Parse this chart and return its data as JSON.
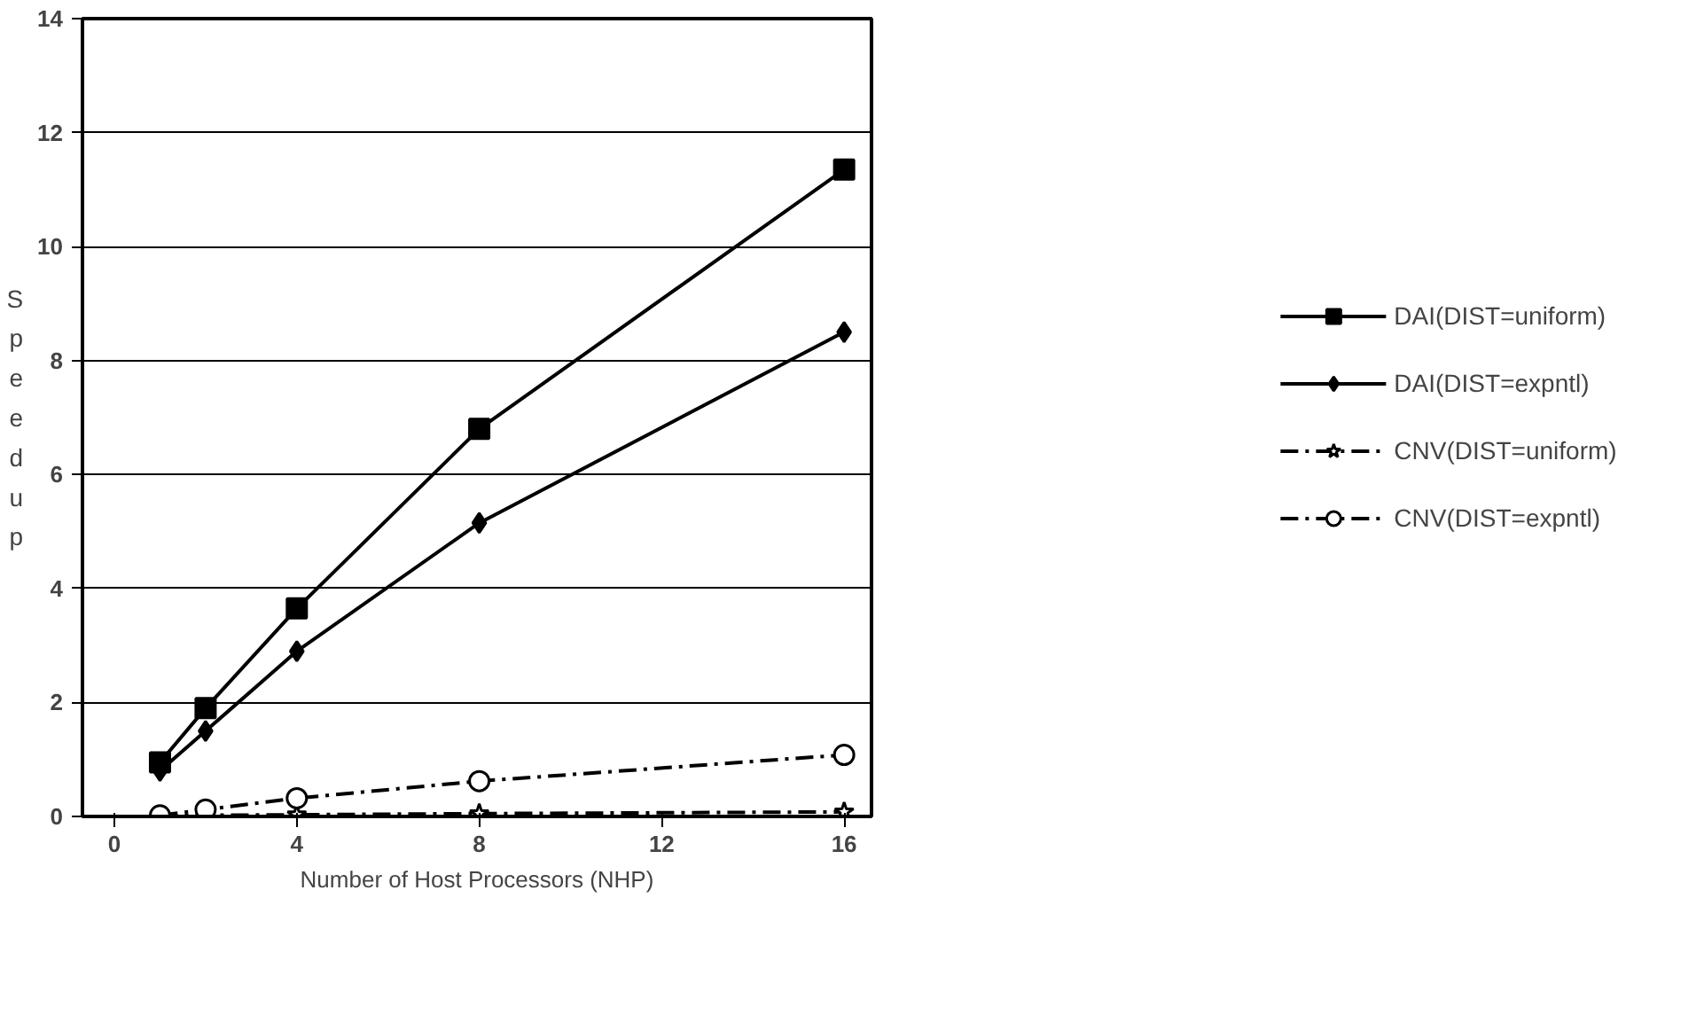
{
  "chart_data": {
    "type": "line",
    "xlabel": "Number of Host Processors (NHP)",
    "ylabel": "Speedup",
    "x": [
      1,
      2,
      4,
      8,
      16
    ],
    "xlim": [
      -0.7,
      16.6
    ],
    "xticks": [
      0,
      4,
      8,
      12,
      16
    ],
    "ylim": [
      0,
      14
    ],
    "yticks": [
      0,
      2,
      4,
      6,
      8,
      10,
      12,
      14
    ],
    "grid": "y",
    "legend": "right",
    "series": [
      {
        "name": "DAI(DIST=uniform)",
        "color": "#000000",
        "marker": "square",
        "line_style": "solid",
        "values": [
          0.95,
          1.9,
          3.65,
          6.8,
          11.35
        ]
      },
      {
        "name": "DAI(DIST=expntl)",
        "color": "#000000",
        "marker": "diamond",
        "line_style": "solid",
        "values": [
          0.8,
          1.5,
          2.9,
          5.15,
          8.5
        ]
      },
      {
        "name": "CNV(DIST=uniform)",
        "color": "#000000",
        "marker": "star",
        "line_style": "dashed",
        "values": [
          0.01,
          0.02,
          0.03,
          0.05,
          0.08
        ]
      },
      {
        "name": "CNV(DIST=expntl)",
        "color": "#000000",
        "marker": "circle",
        "line_style": "dashed",
        "values": [
          0.02,
          0.12,
          0.32,
          0.62,
          1.08
        ]
      }
    ]
  }
}
